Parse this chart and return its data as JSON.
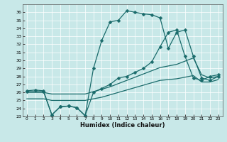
{
  "xlabel": "Humidex (Indice chaleur)",
  "bg_color": "#c8e8e8",
  "line_color": "#1a6b6b",
  "grid_color": "#ffffff",
  "xlim": [
    -0.5,
    23.5
  ],
  "ylim": [
    23,
    37
  ],
  "yticks": [
    23,
    24,
    25,
    26,
    27,
    28,
    29,
    30,
    31,
    32,
    33,
    34,
    35,
    36
  ],
  "xticks": [
    0,
    1,
    2,
    3,
    4,
    5,
    6,
    7,
    8,
    9,
    10,
    11,
    12,
    13,
    14,
    15,
    16,
    17,
    18,
    19,
    20,
    21,
    22,
    23
  ],
  "lines": [
    {
      "x": [
        0,
        1,
        2,
        3,
        4,
        5,
        6,
        7,
        8,
        9,
        10,
        11,
        12,
        13,
        14,
        15,
        16,
        17,
        18,
        19,
        20,
        21,
        22,
        23
      ],
      "y": [
        26.2,
        26.3,
        26.2,
        23.2,
        24.2,
        24.3,
        24.1,
        23.1,
        29.0,
        32.5,
        34.8,
        35.0,
        36.2,
        36.0,
        35.8,
        35.7,
        35.3,
        31.5,
        33.5,
        33.8,
        30.5,
        27.8,
        27.5,
        28.0
      ],
      "marker": "D",
      "markersize": 2.5,
      "linewidth": 0.9
    },
    {
      "x": [
        0,
        2,
        3,
        4,
        5,
        6,
        7,
        8,
        9,
        10,
        11,
        12,
        13,
        14,
        15,
        16,
        17,
        18,
        19,
        20,
        21,
        22,
        23
      ],
      "y": [
        26.1,
        26.1,
        23.2,
        24.2,
        24.3,
        24.1,
        23.1,
        26.0,
        26.5,
        27.0,
        27.8,
        28.0,
        28.5,
        29.0,
        29.8,
        31.7,
        33.5,
        33.8,
        30.5,
        27.8,
        27.5,
        28.0,
        28.2
      ],
      "marker": "D",
      "markersize": 2.5,
      "linewidth": 0.9
    },
    {
      "x": [
        0,
        1,
        2,
        3,
        4,
        5,
        6,
        7,
        8,
        9,
        10,
        11,
        12,
        13,
        14,
        15,
        16,
        17,
        18,
        19,
        20,
        21,
        22,
        23
      ],
      "y": [
        26.0,
        26.0,
        26.0,
        25.8,
        25.8,
        25.8,
        25.8,
        25.8,
        26.1,
        26.4,
        26.7,
        27.1,
        27.5,
        27.9,
        28.3,
        28.7,
        29.1,
        29.3,
        29.5,
        29.9,
        30.3,
        28.2,
        27.8,
        28.0
      ],
      "marker": null,
      "markersize": 0,
      "linewidth": 0.9
    },
    {
      "x": [
        0,
        1,
        2,
        3,
        4,
        5,
        6,
        7,
        8,
        9,
        10,
        11,
        12,
        13,
        14,
        15,
        16,
        17,
        18,
        19,
        20,
        21,
        22,
        23
      ],
      "y": [
        25.2,
        25.2,
        25.2,
        25.0,
        25.0,
        25.0,
        25.0,
        25.0,
        25.2,
        25.4,
        25.7,
        26.0,
        26.3,
        26.6,
        26.9,
        27.2,
        27.5,
        27.6,
        27.7,
        27.9,
        28.1,
        27.3,
        27.3,
        27.6
      ],
      "marker": null,
      "markersize": 0,
      "linewidth": 0.9
    }
  ]
}
